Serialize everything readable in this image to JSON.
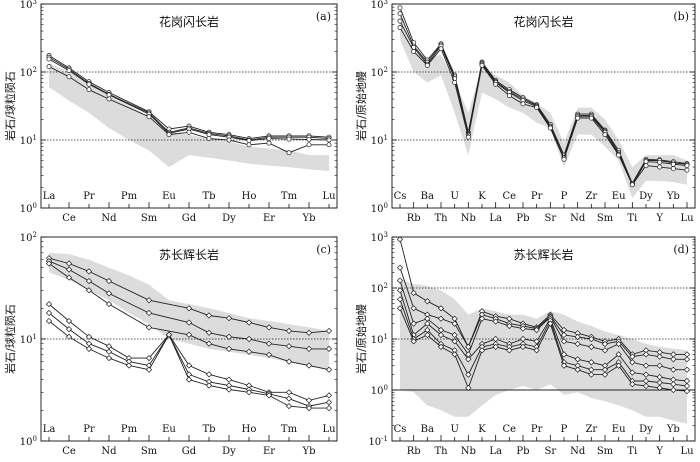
{
  "chart_data": [
    {
      "id": "a",
      "type": "line",
      "panel_label": "(a)",
      "title": "花岗闪长岩",
      "ylabel": "岩石/球粒陨石",
      "xlabel": "",
      "yscale": "log",
      "ylim": [
        1,
        1000
      ],
      "y_ticks": [
        {
          "value": 1,
          "base": "10",
          "exp": "0"
        },
        {
          "value": 10,
          "base": "10",
          "exp": "1"
        },
        {
          "value": 100,
          "base": "10",
          "exp": "2"
        },
        {
          "value": 1000,
          "base": "10",
          "exp": "3"
        }
      ],
      "ref_lines": [
        10,
        100
      ],
      "categories": [
        "La",
        "Ce",
        "Pr",
        "Nd",
        "Pm",
        "Sm",
        "Eu",
        "Gd",
        "Tb",
        "Dy",
        "Ho",
        "Er",
        "Tm",
        "Yb",
        "Lu"
      ],
      "band": {
        "upper": [
          135,
          100,
          65,
          45,
          32,
          22,
          13,
          12,
          10.5,
          9.5,
          8,
          7.5,
          7,
          6,
          6
        ],
        "lower": [
          60,
          38,
          25,
          15,
          10,
          7,
          4,
          6,
          5.5,
          5,
          4.5,
          4.2,
          4,
          3.7,
          3.5
        ]
      },
      "series": [
        {
          "marker": "circle",
          "values": [
            175,
            115,
            72,
            50,
            null,
            26,
            14.5,
            16,
            13,
            12,
            10.5,
            11.5,
            11.5,
            11.5,
            11
          ]
        },
        {
          "marker": "circle",
          "values": [
            165,
            110,
            68,
            47,
            null,
            25,
            13,
            15,
            12.5,
            11.5,
            10,
            11,
            11,
            11,
            10.5
          ]
        },
        {
          "marker": "circle",
          "values": [
            155,
            105,
            66,
            46,
            null,
            24,
            12.5,
            14.5,
            12,
            11,
            9.8,
            10.5,
            10.3,
            10.2,
            10
          ]
        },
        {
          "marker": "circle",
          "values": [
            120,
            85,
            55,
            40,
            null,
            22,
            12,
            13,
            10.5,
            10,
            8.5,
            9,
            6.5,
            8.5,
            8.5
          ]
        }
      ]
    },
    {
      "id": "b",
      "type": "line",
      "panel_label": "(b)",
      "title": "花岗闪长岩",
      "ylabel": "岩石/原始地幔",
      "xlabel": "",
      "yscale": "log",
      "ylim": [
        1,
        1000
      ],
      "y_ticks": [
        {
          "value": 1,
          "base": "10",
          "exp": "0"
        },
        {
          "value": 10,
          "base": "10",
          "exp": "1"
        },
        {
          "value": 100,
          "base": "10",
          "exp": "2"
        },
        {
          "value": 1000,
          "base": "10",
          "exp": "3"
        }
      ],
      "ref_lines": [
        10,
        100
      ],
      "categories": [
        "Cs",
        "Rb",
        "Ba",
        "Th",
        "U",
        "Nb",
        "K",
        "La",
        "Ce",
        "Pb",
        "Pr",
        "Sr",
        "P",
        "Nd",
        "Zr",
        "Sm",
        "Eu",
        "Ti",
        "Dy",
        "Y",
        "Yb",
        "Lu"
      ],
      "band": {
        "upper": [
          700,
          200,
          160,
          180,
          75,
          25,
          120,
          90,
          70,
          45,
          35,
          25,
          9,
          30,
          30,
          20,
          10,
          4,
          6,
          6,
          6,
          5
        ],
        "lower": [
          300,
          100,
          70,
          90,
          25,
          6,
          50,
          40,
          30,
          25,
          18,
          15,
          4,
          12,
          12,
          8,
          5,
          1.4,
          2.5,
          2.5,
          2.4,
          2.2
        ]
      },
      "series": [
        {
          "marker": "circle",
          "values": [
            880,
            270,
            150,
            260,
            90,
            13,
            140,
            75,
            55,
            42,
            33,
            17,
            6,
            24,
            24,
            14,
            7,
            2.3,
            5.2,
            5.1,
            4.8,
            4.5
          ]
        },
        {
          "marker": "circle",
          "values": [
            720,
            240,
            140,
            250,
            85,
            12,
            135,
            72,
            52,
            40,
            32,
            16,
            5.5,
            23,
            23,
            13.5,
            6.5,
            2.3,
            5,
            5,
            4.6,
            4.4
          ]
        },
        {
          "marker": "circle",
          "values": [
            560,
            230,
            130,
            240,
            80,
            12,
            130,
            70,
            50,
            38,
            31,
            15.5,
            5.5,
            22,
            22,
            13,
            6.2,
            2.2,
            4.8,
            4.7,
            4.4,
            4.2
          ]
        },
        {
          "marker": "circle",
          "values": [
            450,
            200,
            125,
            220,
            70,
            11,
            125,
            66,
            45,
            34,
            30,
            15,
            5.2,
            21,
            21,
            12,
            6,
            2.2,
            4.2,
            4,
            3.8,
            3.6
          ]
        }
      ]
    },
    {
      "id": "c",
      "type": "line",
      "panel_label": "(c)",
      "title": "苏长辉长岩",
      "ylabel": "岩石/球粒陨石",
      "xlabel": "",
      "yscale": "log",
      "ylim": [
        1,
        100
      ],
      "y_ticks": [
        {
          "value": 1,
          "base": "10",
          "exp": "0"
        },
        {
          "value": 10,
          "base": "10",
          "exp": "1"
        },
        {
          "value": 100,
          "base": "10",
          "exp": "2"
        }
      ],
      "ref_lines": [
        10
      ],
      "categories": [
        "La",
        "Ce",
        "Pr",
        "Nd",
        "Pm",
        "Sm",
        "Eu",
        "Gd",
        "Tb",
        "Dy",
        "Ho",
        "Er",
        "Tm",
        "Yb",
        "Lu"
      ],
      "band": {
        "upper": [
          70,
          68,
          60,
          50,
          42,
          34,
          24,
          22,
          20,
          18,
          16,
          15,
          14,
          13,
          12
        ],
        "lower": [
          45,
          38,
          30,
          24,
          18,
          14,
          10,
          9,
          8,
          7.5,
          7,
          6.5,
          6,
          5.5,
          5
        ]
      },
      "series": [
        {
          "marker": "diamond",
          "values": [
            62,
            55,
            46,
            37,
            null,
            24,
            null,
            20,
            17,
            16,
            14.5,
            13,
            12,
            11.5,
            12
          ]
        },
        {
          "marker": "diamond",
          "values": [
            58,
            48,
            37,
            28,
            null,
            18,
            null,
            14.5,
            11.5,
            10.5,
            10,
            9,
            8.5,
            8,
            8
          ]
        },
        {
          "marker": "diamond",
          "values": [
            55,
            40,
            30,
            22,
            null,
            13,
            null,
            11,
            9,
            8,
            7.5,
            7,
            6,
            5.5,
            5
          ]
        },
        {
          "marker": "diamond",
          "values": [
            22,
            15,
            10.5,
            8.5,
            6.5,
            6.5,
            11,
            5.5,
            4.5,
            4,
            3.5,
            3,
            3,
            2.5,
            2.8
          ]
        },
        {
          "marker": "diamond",
          "values": [
            18,
            12.5,
            9,
            7.5,
            6,
            5.5,
            11,
            4.5,
            3.8,
            3.5,
            3.2,
            2.9,
            2.6,
            2.2,
            2.4
          ]
        },
        {
          "marker": "diamond",
          "values": [
            15,
            10.5,
            8,
            6.5,
            5.5,
            5,
            11,
            4,
            3.5,
            3.2,
            3.0,
            2.8,
            2.2,
            2.1,
            2.1
          ]
        }
      ]
    },
    {
      "id": "d",
      "type": "line",
      "panel_label": "(d)",
      "title": "苏长辉长岩",
      "ylabel": "岩石/原始地幔",
      "xlabel": "",
      "yscale": "log",
      "ylim": [
        0.1,
        1000
      ],
      "y_ticks": [
        {
          "value": 0.1,
          "base": "10",
          "exp": "-1"
        },
        {
          "value": 1,
          "base": "10",
          "exp": "0"
        },
        {
          "value": 10,
          "base": "10",
          "exp": "1"
        },
        {
          "value": 100,
          "base": "10",
          "exp": "2"
        },
        {
          "value": 1000,
          "base": "10",
          "exp": "3"
        }
      ],
      "ref_lines": [
        1,
        10,
        100
      ],
      "categories": [
        "Cs",
        "Rb",
        "Ba",
        "Th",
        "U",
        "Nb",
        "K",
        "La",
        "Ce",
        "Pb",
        "Pr",
        "Sr",
        "P",
        "Nd",
        "Zr",
        "Sm",
        "Eu",
        "Ti",
        "Dy",
        "Y",
        "Yb",
        "Lu"
      ],
      "band": {
        "upper": [
          150,
          120,
          110,
          90,
          60,
          30,
          40,
          35,
          30,
          30,
          25,
          35,
          30,
          22,
          18,
          14,
          12,
          10,
          8,
          7,
          6.5,
          6
        ],
        "lower": [
          1.0,
          0.9,
          0.5,
          0.4,
          0.3,
          0.3,
          0.5,
          0.8,
          1.0,
          1.2,
          1.0,
          1.3,
          0.8,
          0.9,
          0.7,
          0.6,
          0.5,
          0.4,
          0.3,
          0.3,
          0.25,
          0.22
        ]
      },
      "series": [
        {
          "marker": "diamond",
          "values": [
            900,
            80,
            55,
            40,
            25,
            7,
            35,
            28,
            25,
            20,
            17,
            30,
            15,
            13,
            11,
            9,
            10,
            5,
            6,
            5.5,
            5,
            5
          ]
        },
        {
          "marker": "diamond",
          "values": [
            250,
            40,
            30,
            25,
            20,
            7,
            30,
            25,
            20,
            18,
            16,
            28,
            12,
            11,
            10,
            8,
            9,
            4.5,
            5,
            4.5,
            4,
            4
          ]
        },
        {
          "marker": "diamond",
          "values": [
            140,
            20,
            25,
            15,
            12,
            5,
            25,
            22,
            18,
            16,
            15,
            27,
            9,
            8,
            7,
            6,
            8,
            3.5,
            3,
            3,
            2.5,
            2.5
          ]
        },
        {
          "marker": "diamond",
          "values": [
            90,
            12,
            20,
            12,
            9,
            4,
            8,
            10,
            8,
            10,
            9,
            25,
            5,
            4,
            3.5,
            3,
            5,
            2.2,
            2,
            1.8,
            1.6,
            1.5
          ]
        },
        {
          "marker": "diamond",
          "values": [
            60,
            10,
            15,
            8,
            6,
            2,
            7,
            8,
            7,
            8,
            7,
            23,
            3.5,
            3,
            2.5,
            2.5,
            3.5,
            1.5,
            1.5,
            1.4,
            1.3,
            1.2
          ]
        },
        {
          "marker": "diamond",
          "values": [
            40,
            9,
            12,
            7,
            5,
            1.1,
            6,
            7,
            6,
            7,
            6,
            20,
            3,
            2.5,
            2,
            2,
            3,
            1.3,
            1.2,
            1.1,
            1.0,
            0.95
          ]
        }
      ]
    }
  ]
}
